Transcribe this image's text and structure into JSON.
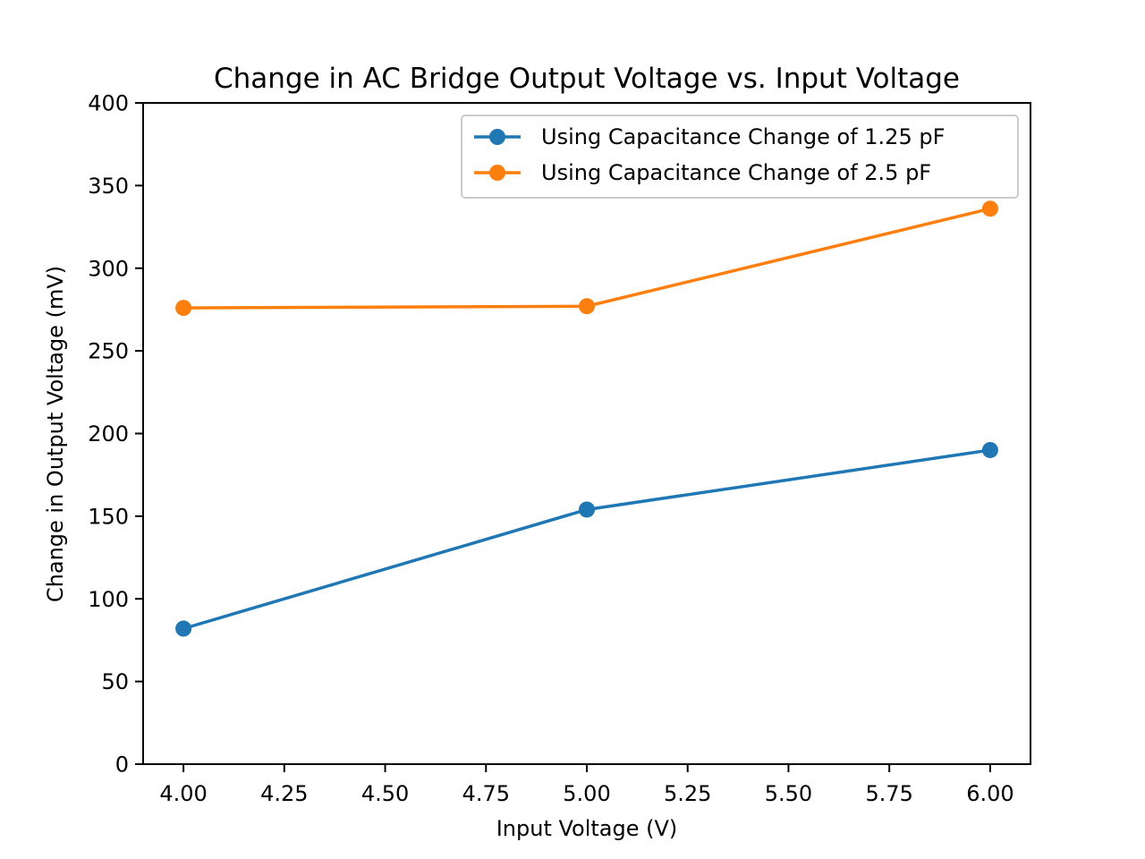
{
  "chart_data": {
    "type": "line",
    "title": "Change in AC Bridge Output Voltage vs. Input Voltage",
    "xlabel": "Input Voltage (V)",
    "ylabel": "Change in Output Voltage (mV)",
    "xlim": [
      3.9,
      6.1
    ],
    "ylim": [
      0,
      400
    ],
    "x_ticks": [
      4.0,
      4.25,
      4.5,
      4.75,
      5.0,
      5.25,
      5.5,
      5.75,
      6.0
    ],
    "x_tick_labels": [
      "4.00",
      "4.25",
      "4.50",
      "4.75",
      "5.00",
      "5.25",
      "5.50",
      "5.75",
      "6.00"
    ],
    "y_ticks": [
      0,
      50,
      100,
      150,
      200,
      250,
      300,
      350,
      400
    ],
    "y_tick_labels": [
      "0",
      "50",
      "100",
      "150",
      "200",
      "250",
      "300",
      "350",
      "400"
    ],
    "grid": false,
    "legend_position": "top-right",
    "series": [
      {
        "name": "Using Capacitance Change of 1.25 pF",
        "color": "#1f77b4",
        "marker": "circle",
        "x": [
          4.0,
          5.0,
          6.0
        ],
        "y": [
          82,
          154,
          190
        ]
      },
      {
        "name": "Using Capacitance Change of 2.5 pF",
        "color": "#ff7f0e",
        "marker": "circle",
        "x": [
          4.0,
          5.0,
          6.0
        ],
        "y": [
          276,
          277,
          336
        ]
      }
    ]
  }
}
